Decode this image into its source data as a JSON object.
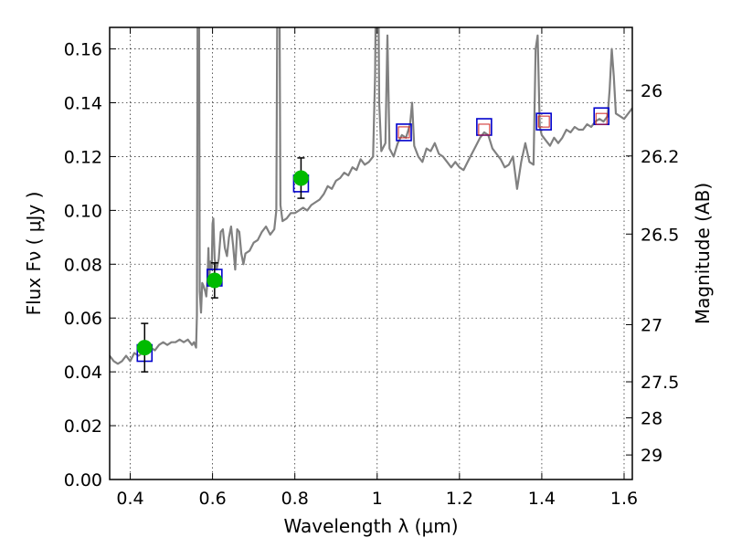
{
  "chart_data": {
    "type": "line",
    "xlabel": "Wavelength  λ (μm)",
    "ylabel": "Flux  Fν  ( μJy )",
    "y2label": "Magnitude (AB)",
    "xlim": [
      0.35,
      1.62
    ],
    "ylim": [
      0.0,
      0.168
    ],
    "grid": true,
    "x_ticks": [
      {
        "value": 0.4,
        "label": "0.4"
      },
      {
        "value": 0.6,
        "label": "0.6"
      },
      {
        "value": 0.8,
        "label": "0.8"
      },
      {
        "value": 1.0,
        "label": "1"
      },
      {
        "value": 1.2,
        "label": "1.2"
      },
      {
        "value": 1.4,
        "label": "1.4"
      },
      {
        "value": 1.6,
        "label": "1.6"
      }
    ],
    "y_ticks": [
      {
        "value": 0.0,
        "label": "0.00"
      },
      {
        "value": 0.02,
        "label": "0.02"
      },
      {
        "value": 0.04,
        "label": "0.04"
      },
      {
        "value": 0.06,
        "label": "0.06"
      },
      {
        "value": 0.08,
        "label": "0.08"
      },
      {
        "value": 0.1,
        "label": "0.10"
      },
      {
        "value": 0.12,
        "label": "0.12"
      },
      {
        "value": 0.14,
        "label": "0.14"
      },
      {
        "value": 0.16,
        "label": "0.16"
      }
    ],
    "mag_ticks": [
      {
        "value": 26,
        "label": "26"
      },
      {
        "value": 26.2,
        "label": "26.2"
      },
      {
        "value": 26.5,
        "label": "26.5"
      },
      {
        "value": 27,
        "label": "27"
      },
      {
        "value": 27.5,
        "label": "27.5"
      },
      {
        "value": 28,
        "label": "28"
      },
      {
        "value": 29,
        "label": "29"
      }
    ],
    "series": [
      {
        "kind": "line",
        "color": "#808080",
        "points": [
          [
            0.35,
            0.046
          ],
          [
            0.36,
            0.044
          ],
          [
            0.37,
            0.043
          ],
          [
            0.38,
            0.044
          ],
          [
            0.39,
            0.046
          ],
          [
            0.4,
            0.044
          ],
          [
            0.41,
            0.047
          ],
          [
            0.42,
            0.046
          ],
          [
            0.43,
            0.047
          ],
          [
            0.44,
            0.048
          ],
          [
            0.45,
            0.049
          ],
          [
            0.46,
            0.048
          ],
          [
            0.47,
            0.05
          ],
          [
            0.48,
            0.051
          ],
          [
            0.49,
            0.05
          ],
          [
            0.5,
            0.051
          ],
          [
            0.51,
            0.051
          ],
          [
            0.52,
            0.052
          ],
          [
            0.53,
            0.051
          ],
          [
            0.54,
            0.052
          ],
          [
            0.55,
            0.05
          ],
          [
            0.555,
            0.051
          ],
          [
            0.56,
            0.049
          ],
          [
            0.562,
            0.061
          ],
          [
            0.564,
            0.2
          ],
          [
            0.567,
            0.2
          ],
          [
            0.569,
            0.07
          ],
          [
            0.572,
            0.062
          ],
          [
            0.575,
            0.073
          ],
          [
            0.578,
            0.072
          ],
          [
            0.582,
            0.07
          ],
          [
            0.585,
            0.068
          ],
          [
            0.588,
            0.075
          ],
          [
            0.59,
            0.086
          ],
          [
            0.592,
            0.075
          ],
          [
            0.595,
            0.081
          ],
          [
            0.598,
            0.078
          ],
          [
            0.6,
            0.095
          ],
          [
            0.602,
            0.097
          ],
          [
            0.605,
            0.082
          ],
          [
            0.61,
            0.078
          ],
          [
            0.615,
            0.082
          ],
          [
            0.62,
            0.092
          ],
          [
            0.625,
            0.093
          ],
          [
            0.63,
            0.086
          ],
          [
            0.635,
            0.083
          ],
          [
            0.64,
            0.09
          ],
          [
            0.645,
            0.094
          ],
          [
            0.65,
            0.087
          ],
          [
            0.655,
            0.078
          ],
          [
            0.66,
            0.093
          ],
          [
            0.665,
            0.092
          ],
          [
            0.67,
            0.084
          ],
          [
            0.675,
            0.08
          ],
          [
            0.68,
            0.084
          ],
          [
            0.69,
            0.085
          ],
          [
            0.7,
            0.088
          ],
          [
            0.71,
            0.089
          ],
          [
            0.72,
            0.092
          ],
          [
            0.73,
            0.094
          ],
          [
            0.74,
            0.091
          ],
          [
            0.75,
            0.093
          ],
          [
            0.755,
            0.1
          ],
          [
            0.758,
            0.2
          ],
          [
            0.762,
            0.2
          ],
          [
            0.765,
            0.102
          ],
          [
            0.77,
            0.096
          ],
          [
            0.78,
            0.097
          ],
          [
            0.79,
            0.099
          ],
          [
            0.8,
            0.099
          ],
          [
            0.81,
            0.1
          ],
          [
            0.82,
            0.101
          ],
          [
            0.83,
            0.1
          ],
          [
            0.84,
            0.102
          ],
          [
            0.85,
            0.103
          ],
          [
            0.86,
            0.104
          ],
          [
            0.87,
            0.106
          ],
          [
            0.88,
            0.109
          ],
          [
            0.89,
            0.108
          ],
          [
            0.9,
            0.111
          ],
          [
            0.91,
            0.112
          ],
          [
            0.92,
            0.114
          ],
          [
            0.93,
            0.113
          ],
          [
            0.94,
            0.116
          ],
          [
            0.95,
            0.115
          ],
          [
            0.96,
            0.119
          ],
          [
            0.97,
            0.117
          ],
          [
            0.98,
            0.118
          ],
          [
            0.99,
            0.12
          ],
          [
            0.995,
            0.15
          ],
          [
            0.998,
            0.2
          ],
          [
            1.002,
            0.2
          ],
          [
            1.005,
            0.14
          ],
          [
            1.01,
            0.122
          ],
          [
            1.02,
            0.125
          ],
          [
            1.025,
            0.165
          ],
          [
            1.03,
            0.123
          ],
          [
            1.04,
            0.12
          ],
          [
            1.05,
            0.125
          ],
          [
            1.06,
            0.128
          ],
          [
            1.07,
            0.127
          ],
          [
            1.08,
            0.132
          ],
          [
            1.085,
            0.14
          ],
          [
            1.09,
            0.124
          ],
          [
            1.1,
            0.12
          ],
          [
            1.11,
            0.118
          ],
          [
            1.12,
            0.123
          ],
          [
            1.13,
            0.122
          ],
          [
            1.14,
            0.125
          ],
          [
            1.15,
            0.121
          ],
          [
            1.16,
            0.12
          ],
          [
            1.17,
            0.118
          ],
          [
            1.18,
            0.116
          ],
          [
            1.19,
            0.118
          ],
          [
            1.2,
            0.116
          ],
          [
            1.21,
            0.115
          ],
          [
            1.22,
            0.118
          ],
          [
            1.23,
            0.121
          ],
          [
            1.24,
            0.124
          ],
          [
            1.25,
            0.127
          ],
          [
            1.26,
            0.129
          ],
          [
            1.27,
            0.128
          ],
          [
            1.28,
            0.123
          ],
          [
            1.29,
            0.121
          ],
          [
            1.3,
            0.119
          ],
          [
            1.31,
            0.116
          ],
          [
            1.32,
            0.117
          ],
          [
            1.33,
            0.12
          ],
          [
            1.34,
            0.108
          ],
          [
            1.35,
            0.118
          ],
          [
            1.36,
            0.125
          ],
          [
            1.37,
            0.118
          ],
          [
            1.38,
            0.117
          ],
          [
            1.385,
            0.16
          ],
          [
            1.39,
            0.165
          ],
          [
            1.395,
            0.131
          ],
          [
            1.4,
            0.128
          ],
          [
            1.41,
            0.126
          ],
          [
            1.42,
            0.124
          ],
          [
            1.43,
            0.127
          ],
          [
            1.44,
            0.125
          ],
          [
            1.45,
            0.127
          ],
          [
            1.46,
            0.13
          ],
          [
            1.47,
            0.129
          ],
          [
            1.48,
            0.131
          ],
          [
            1.49,
            0.13
          ],
          [
            1.5,
            0.13
          ],
          [
            1.51,
            0.132
          ],
          [
            1.52,
            0.131
          ],
          [
            1.53,
            0.133
          ],
          [
            1.54,
            0.134
          ],
          [
            1.55,
            0.133
          ],
          [
            1.56,
            0.135
          ],
          [
            1.565,
            0.145
          ],
          [
            1.57,
            0.16
          ],
          [
            1.575,
            0.15
          ],
          [
            1.58,
            0.136
          ],
          [
            1.59,
            0.135
          ],
          [
            1.6,
            0.134
          ],
          [
            1.61,
            0.136
          ],
          [
            1.62,
            0.138
          ]
        ]
      },
      {
        "kind": "squares",
        "color": "#0000cc",
        "points": [
          [
            0.435,
            0.047
          ],
          [
            0.605,
            0.075
          ],
          [
            0.815,
            0.11
          ],
          [
            1.065,
            0.129
          ],
          [
            1.26,
            0.131
          ],
          [
            1.405,
            0.133
          ],
          [
            1.545,
            0.135
          ]
        ]
      },
      {
        "kind": "small-squares",
        "color": "#cc2222",
        "points": [
          [
            1.065,
            0.129
          ],
          [
            1.26,
            0.13
          ],
          [
            1.405,
            0.133
          ],
          [
            1.545,
            0.134
          ]
        ]
      },
      {
        "kind": "points-errorbars",
        "color": "#00bb00",
        "points": [
          {
            "x": 0.435,
            "y": 0.049,
            "err": 0.009
          },
          {
            "x": 0.605,
            "y": 0.074,
            "err": 0.0065
          },
          {
            "x": 0.815,
            "y": 0.112,
            "err": 0.0075
          }
        ]
      }
    ]
  }
}
